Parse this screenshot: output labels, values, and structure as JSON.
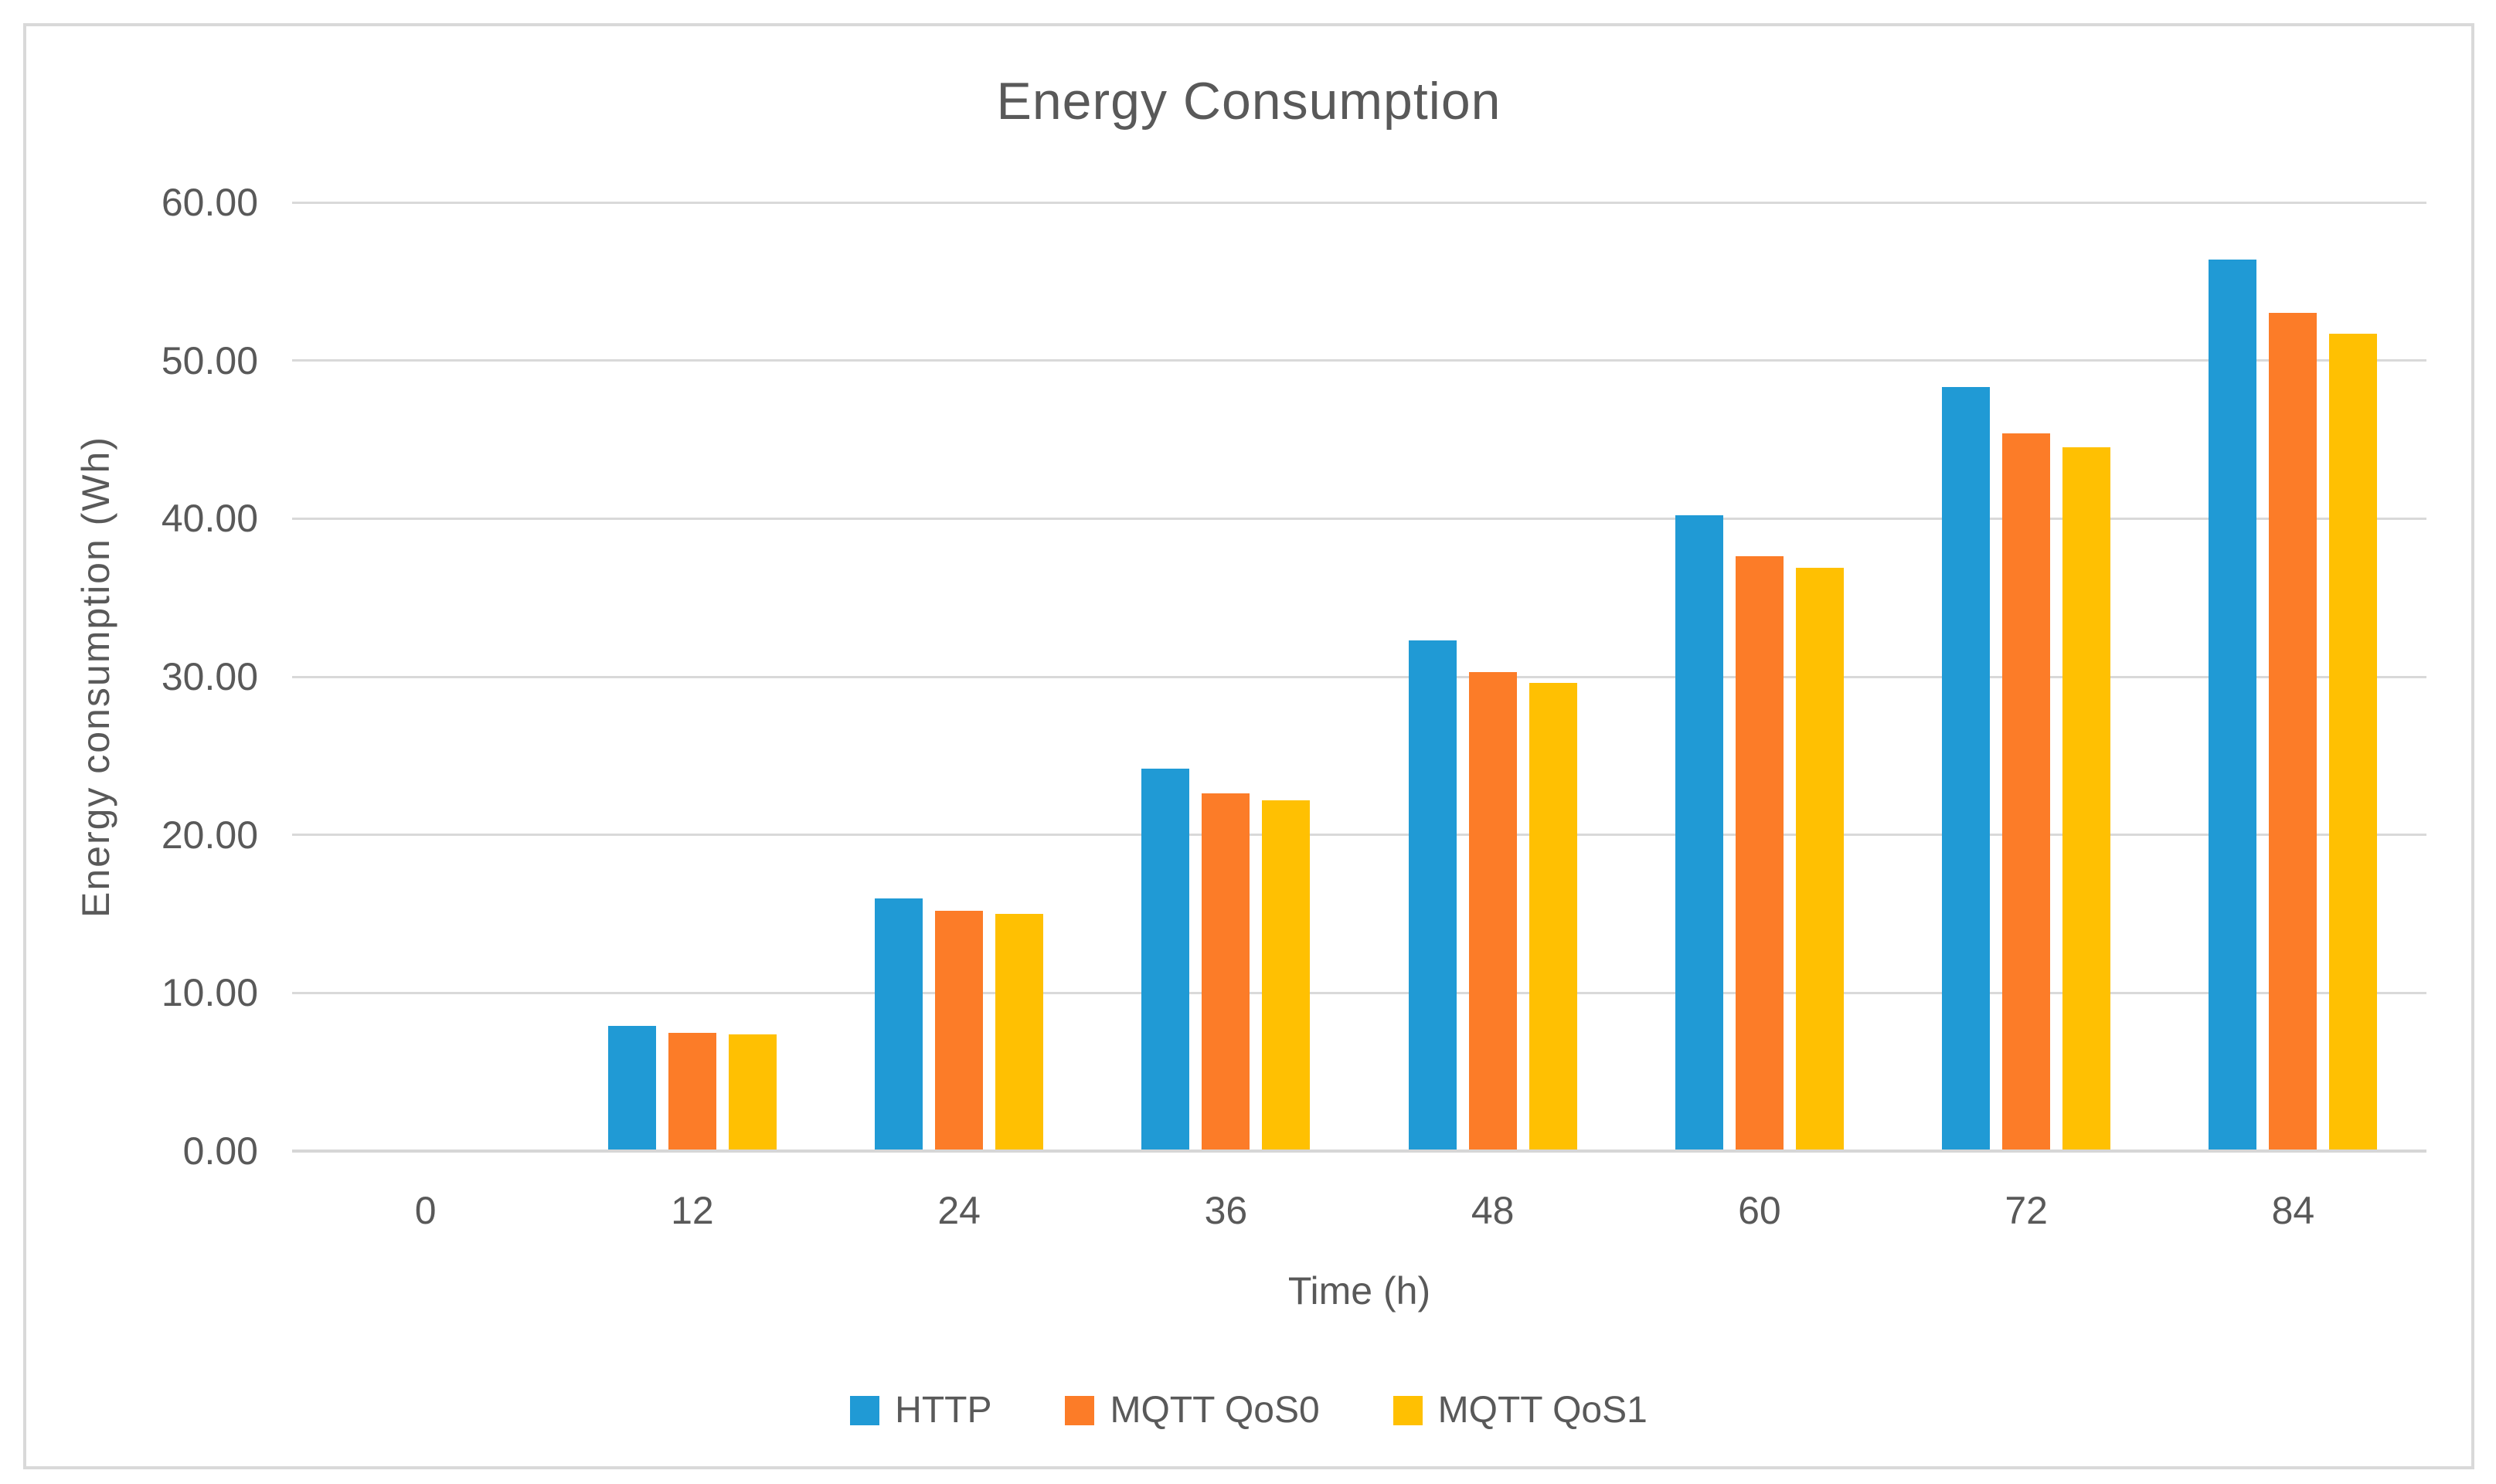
{
  "title": "Energy Consumption",
  "colors": {
    "series_blue": "#209AD5",
    "series_orange": "#FC7C28",
    "series_yellow": "#FFC002",
    "gridline": "#D9D9D9",
    "axis_text": "#595959",
    "frame_border": "#D9D9D9"
  },
  "y_axis": {
    "title": "Energy consumption (Wh)",
    "tick_labels": [
      "60.00",
      "50.00",
      "40.00",
      "30.00",
      "20.00",
      "10.00",
      "0.00"
    ],
    "min": 0,
    "max": 60,
    "step": 10
  },
  "x_axis": {
    "title": "Time (h)",
    "categories": [
      "0",
      "12",
      "24",
      "36",
      "48",
      "60",
      "72",
      "84"
    ]
  },
  "legend": {
    "items": [
      {
        "label": "HTTP",
        "color": "#209AD5"
      },
      {
        "label": "MQTT QoS0",
        "color": "#FC7C28"
      },
      {
        "label": "MQTT QoS1",
        "color": "#FFC002"
      }
    ]
  },
  "chart_data": {
    "type": "bar",
    "title": "Energy Consumption",
    "xlabel": "Time (h)",
    "ylabel": "Energy consumption (Wh)",
    "categories": [
      0,
      12,
      24,
      36,
      48,
      60,
      72,
      84
    ],
    "series": [
      {
        "name": "HTTP",
        "color": "#209AD5",
        "values": [
          0,
          7.9,
          16.0,
          24.2,
          32.3,
          40.2,
          48.3,
          56.4
        ]
      },
      {
        "name": "MQTT QoS0",
        "color": "#FC7C28",
        "values": [
          0,
          7.5,
          15.2,
          22.6,
          30.3,
          37.6,
          45.4,
          53.0
        ]
      },
      {
        "name": "MQTT QoS1",
        "color": "#FFC002",
        "values": [
          0,
          7.4,
          15.0,
          22.2,
          29.6,
          36.9,
          44.5,
          51.7
        ]
      }
    ],
    "ylim": [
      0,
      60
    ],
    "grid": true,
    "legend_position": "bottom"
  }
}
